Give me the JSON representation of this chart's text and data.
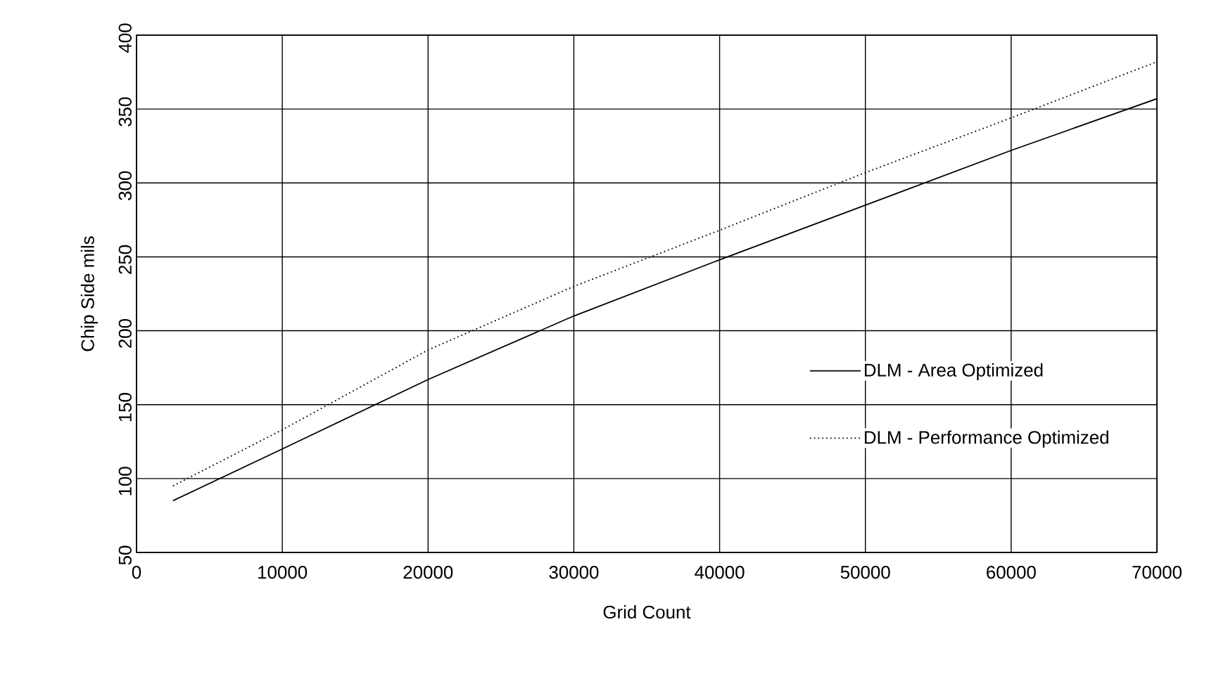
{
  "chart_data": {
    "type": "line",
    "xlabel": "Grid Count",
    "ylabel": "Chip Side mils",
    "xlim": [
      0,
      70000
    ],
    "ylim": [
      50,
      400
    ],
    "xticks": [
      0,
      10000,
      20000,
      30000,
      40000,
      50000,
      60000,
      70000
    ],
    "yticks": [
      50,
      100,
      150,
      200,
      250,
      300,
      350,
      400
    ],
    "grid": true,
    "legend": "right",
    "marker": "none",
    "series": [
      {
        "name": "DLM - Area Optimized",
        "color": "#000000",
        "line_style": "solid",
        "x": [
          2500,
          10000,
          20000,
          30000,
          40000,
          50000,
          60000,
          70000
        ],
        "values": [
          85,
          120,
          167,
          210,
          248,
          285,
          322,
          357
        ]
      },
      {
        "name": "DLM - Performance Optimized",
        "color": "#000000",
        "line_style": "dotted",
        "x": [
          2500,
          10000,
          20000,
          30000,
          40000,
          50000,
          60000,
          70000
        ],
        "values": [
          95,
          133,
          187,
          230,
          268,
          307,
          344,
          382
        ]
      }
    ]
  }
}
